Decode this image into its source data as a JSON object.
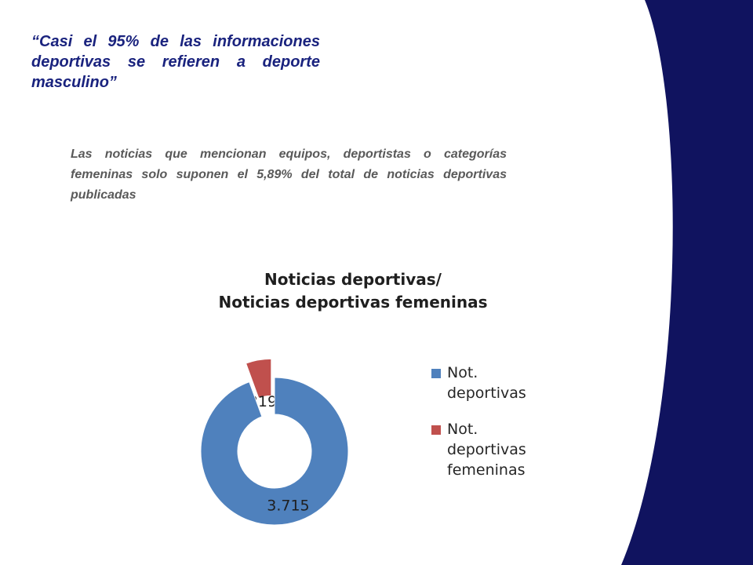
{
  "slide": {
    "title": "“Casi el 95% de las informaciones deportivas se refieren a deporte masculino”",
    "subtitle": "Las noticias que mencionan equipos, deportistas o categorías femeninas solo suponen el 5,89% del total de noticias deportivas publicadas",
    "accent_color": "#10135f",
    "title_color": "#1a237e"
  },
  "chart_data": {
    "type": "pie",
    "style": "doughnut",
    "title_lines": [
      "Noticias deportivas/",
      "Noticias deportivas femeninas"
    ],
    "slices": [
      {
        "label": "Not. deportivas",
        "value": 3715,
        "display": "3.715",
        "color": "#4f81bd",
        "exploded": false
      },
      {
        "label": "Not. deportivas femeninas",
        "value": 219,
        "display": "219",
        "color": "#c0504d",
        "exploded": true
      }
    ],
    "legend_position": "right"
  }
}
